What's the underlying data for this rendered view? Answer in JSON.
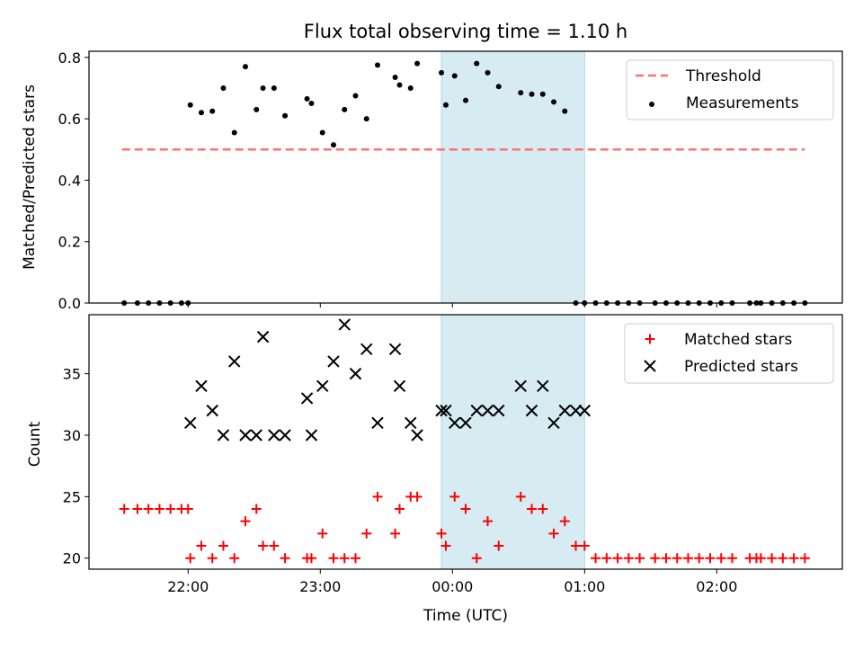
{
  "title": "Flux total observing time = 1.10 h",
  "colors": {
    "threshold": "#ff7070",
    "measurement": "#000000",
    "matched": "#ff0000",
    "predicted": "#000000",
    "span_fill": "#add8e6"
  },
  "chart_data": [
    {
      "type": "scatter",
      "ylabel": "Matched/Predicted stars",
      "ylim": [
        0,
        0.82
      ],
      "xlim": [
        "21:15",
        "02:57"
      ],
      "yticks": [
        "0.0",
        "0.2",
        "0.4",
        "0.6",
        "0.8"
      ],
      "highlight_span": [
        "23:55",
        "01:00"
      ],
      "threshold": {
        "name": "Threshold",
        "y": 0.5,
        "x_range": [
          "21:30",
          "02:40"
        ]
      },
      "legend": {
        "placement": "upper right",
        "entries": [
          "Threshold",
          "Measurements"
        ]
      },
      "series": [
        {
          "name": "Measurements",
          "x": [
            "21:31",
            "21:37",
            "21:42",
            "21:47",
            "21:52",
            "21:57",
            "22:00",
            "22:01",
            "22:06",
            "22:11",
            "22:16",
            "22:21",
            "22:26",
            "22:31",
            "22:34",
            "22:39",
            "22:44",
            "22:54",
            "22:56",
            "23:01",
            "23:06",
            "23:11",
            "23:16",
            "23:21",
            "23:26",
            "23:34",
            "23:36",
            "23:41",
            "23:44",
            "23:55",
            "23:57",
            "00:01",
            "00:06",
            "00:11",
            "00:16",
            "00:21",
            "00:31",
            "00:36",
            "00:41",
            "00:46",
            "00:51",
            "00:56",
            "01:00",
            "01:05",
            "01:10",
            "01:15",
            "01:20",
            "01:25",
            "01:32",
            "01:37",
            "01:42",
            "01:47",
            "01:52",
            "01:57",
            "02:02",
            "02:07",
            "02:15",
            "02:18",
            "02:20",
            "02:25",
            "02:30",
            "02:35",
            "02:40"
          ],
          "y": [
            0,
            0,
            0,
            0,
            0,
            0,
            0,
            0.645,
            0.62,
            0.625,
            0.7,
            0.555,
            0.77,
            0.63,
            0.7,
            0.7,
            0.61,
            0.665,
            0.65,
            0.555,
            0.515,
            0.63,
            0.675,
            0.6,
            0.775,
            0.735,
            0.71,
            0.7,
            0.78,
            0.75,
            0.645,
            0.74,
            0.66,
            0.78,
            0.75,
            0.705,
            0.685,
            0.68,
            0.68,
            0.655,
            0.625,
            0,
            0,
            0,
            0,
            0,
            0,
            0,
            0,
            0,
            0,
            0,
            0,
            0,
            0,
            0,
            0,
            0,
            0,
            0,
            0,
            0,
            0
          ]
        }
      ]
    },
    {
      "type": "scatter",
      "xlabel": "Time (UTC)",
      "ylabel": "Count",
      "ylim": [
        19.1,
        39.8
      ],
      "xlim": [
        "21:15",
        "02:57"
      ],
      "yticks": [
        "20",
        "25",
        "30",
        "35"
      ],
      "xticks": [
        "22:00",
        "23:00",
        "00:00",
        "01:00",
        "02:00"
      ],
      "highlight_span": [
        "23:55",
        "01:00"
      ],
      "legend": {
        "placement": "upper right",
        "entries": [
          "Matched stars",
          "Predicted stars"
        ]
      },
      "series": [
        {
          "name": "Matched stars",
          "x": [
            "21:31",
            "21:37",
            "21:42",
            "21:47",
            "21:52",
            "21:57",
            "22:00",
            "22:01",
            "22:06",
            "22:11",
            "22:16",
            "22:21",
            "22:26",
            "22:31",
            "22:34",
            "22:39",
            "22:44",
            "22:54",
            "22:56",
            "23:01",
            "23:06",
            "23:11",
            "23:16",
            "23:21",
            "23:26",
            "23:34",
            "23:36",
            "23:41",
            "23:44",
            "23:55",
            "23:57",
            "00:01",
            "00:06",
            "00:11",
            "00:16",
            "00:21",
            "00:31",
            "00:36",
            "00:41",
            "00:46",
            "00:51",
            "00:56",
            "01:00",
            "01:05",
            "01:10",
            "01:15",
            "01:20",
            "01:25",
            "01:32",
            "01:37",
            "01:42",
            "01:47",
            "01:52",
            "01:57",
            "02:02",
            "02:07",
            "02:15",
            "02:18",
            "02:20",
            "02:25",
            "02:30",
            "02:35",
            "02:40"
          ],
          "y": [
            24,
            24,
            24,
            24,
            24,
            24,
            24,
            20,
            21,
            20,
            21,
            20,
            23,
            24,
            21,
            21,
            20,
            20,
            20,
            22,
            20,
            20,
            20,
            22,
            25,
            22,
            24,
            25,
            25,
            22,
            21,
            25,
            24,
            20,
            23,
            21,
            25,
            24,
            24,
            22,
            23,
            21,
            21,
            20,
            20,
            20,
            20,
            20,
            20,
            20,
            20,
            20,
            20,
            20,
            20,
            20,
            20,
            20,
            20,
            20,
            20,
            20,
            20
          ]
        },
        {
          "name": "Predicted stars",
          "x": [
            "22:01",
            "22:06",
            "22:11",
            "22:16",
            "22:21",
            "22:26",
            "22:31",
            "22:34",
            "22:39",
            "22:44",
            "22:54",
            "22:56",
            "23:01",
            "23:06",
            "23:11",
            "23:16",
            "23:21",
            "23:26",
            "23:34",
            "23:36",
            "23:41",
            "23:44",
            "23:55",
            "23:57",
            "00:01",
            "00:06",
            "00:11",
            "00:16",
            "00:21",
            "00:31",
            "00:36",
            "00:41",
            "00:46",
            "00:51",
            "00:56",
            "01:00"
          ],
          "y": [
            31,
            34,
            32,
            30,
            36,
            30,
            30,
            38,
            30,
            30,
            33,
            30,
            34,
            36,
            39,
            35,
            37,
            31,
            37,
            34,
            31,
            30,
            32,
            32,
            31,
            31,
            32,
            32,
            32,
            34,
            32,
            34,
            31,
            32,
            32,
            32
          ]
        }
      ]
    }
  ]
}
